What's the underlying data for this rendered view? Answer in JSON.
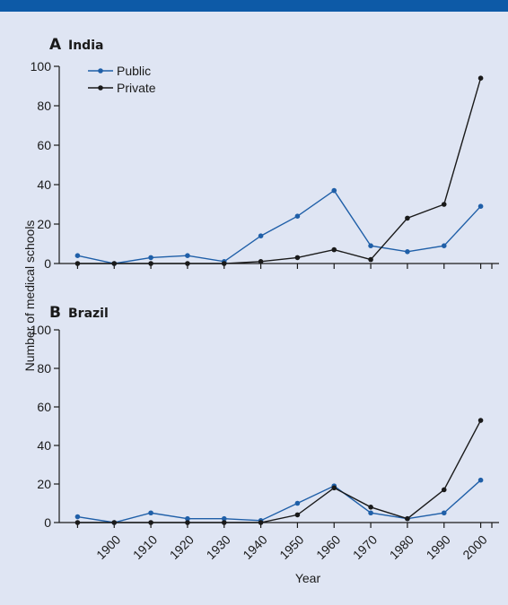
{
  "colors": {
    "public": "#1f5fa8",
    "private": "#1a1a1a",
    "background": "#dfe5f3",
    "topbar": "#0d5aa7"
  },
  "shared": {
    "ylabel": "Number of medical schools",
    "xlabel": "Year"
  },
  "chart_data": [
    {
      "type": "line",
      "panel_letter": "A",
      "title": "India",
      "x": [
        1890,
        1900,
        1910,
        1920,
        1930,
        1940,
        1950,
        1960,
        1970,
        1980,
        1990,
        2000
      ],
      "ylim": [
        0,
        100
      ],
      "yticks": [
        0,
        20,
        40,
        60,
        80,
        100
      ],
      "legend": "top-left",
      "series": [
        {
          "name": "Public",
          "color": "#1f5fa8",
          "points": [
            [
              1890,
              4
            ],
            [
              1900,
              0
            ],
            [
              1910,
              3
            ],
            [
              1920,
              4
            ],
            [
              1930,
              1
            ],
            [
              1940,
              14
            ],
            [
              1950,
              24
            ],
            [
              1960,
              37
            ],
            [
              1970,
              9
            ],
            [
              1980,
              6
            ],
            [
              1990,
              9
            ],
            [
              2000,
              29
            ]
          ]
        },
        {
          "name": "Private",
          "color": "#1a1a1a",
          "points": [
            [
              1890,
              0
            ],
            [
              1900,
              0
            ],
            [
              1910,
              0
            ],
            [
              1920,
              0
            ],
            [
              1930,
              0
            ],
            [
              1940,
              1
            ],
            [
              1950,
              3
            ],
            [
              1960,
              7
            ],
            [
              1970,
              2
            ],
            [
              1980,
              23
            ],
            [
              1990,
              30
            ],
            [
              2000,
              94
            ]
          ]
        }
      ]
    },
    {
      "type": "line",
      "panel_letter": "B",
      "title": "Brazil",
      "xlabel": "Year",
      "x": [
        1890,
        1900,
        1910,
        1920,
        1930,
        1940,
        1950,
        1960,
        1970,
        1980,
        1990,
        2000
      ],
      "xticklabels": [
        "1900",
        "1910",
        "1920",
        "1930",
        "1940",
        "1950",
        "1960",
        "1970",
        "1980",
        "1990",
        "2000"
      ],
      "ylim": [
        0,
        100
      ],
      "yticks": [
        0,
        20,
        40,
        60,
        80,
        100
      ],
      "series": [
        {
          "name": "Public",
          "color": "#1f5fa8",
          "points": [
            [
              1890,
              3
            ],
            [
              1900,
              0
            ],
            [
              1910,
              5
            ],
            [
              1920,
              2
            ],
            [
              1930,
              2
            ],
            [
              1940,
              1
            ],
            [
              1950,
              10
            ],
            [
              1960,
              19
            ],
            [
              1970,
              5
            ],
            [
              1980,
              2
            ],
            [
              1990,
              5
            ],
            [
              2000,
              22
            ]
          ]
        },
        {
          "name": "Private",
          "color": "#1a1a1a",
          "points": [
            [
              1890,
              0
            ],
            [
              1900,
              0
            ],
            [
              1910,
              0
            ],
            [
              1920,
              0
            ],
            [
              1930,
              0
            ],
            [
              1940,
              0
            ],
            [
              1950,
              4
            ],
            [
              1960,
              18
            ],
            [
              1970,
              8
            ],
            [
              1980,
              2
            ],
            [
              1990,
              17
            ],
            [
              2000,
              53
            ]
          ]
        }
      ]
    }
  ]
}
